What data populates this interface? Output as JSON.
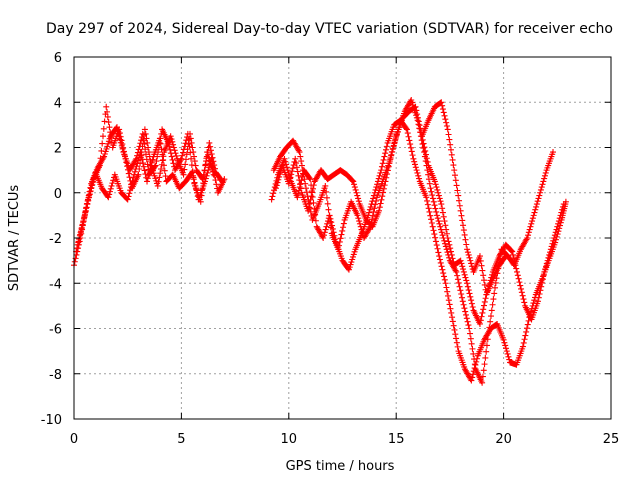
{
  "chart_data": {
    "type": "scatter",
    "title": "Day 297 of 2024, Sidereal Day-to-day VTEC variation (SDTVAR) for receiver echo",
    "xlabel": "GPS time / hours",
    "ylabel": "SDTVAR / TECUs",
    "xlim": [
      0,
      25
    ],
    "ylim": [
      -10,
      6
    ],
    "xticks": [
      "0",
      "5",
      "10",
      "15",
      "20",
      "25"
    ],
    "yticks": [
      "6",
      "4",
      "2",
      "0",
      "-2",
      "-4",
      "-6",
      "-8",
      "-10"
    ],
    "grid": true,
    "marker": "+",
    "color": "#ff0000",
    "series": [
      {
        "name": "trace-1",
        "x": [
          0.0,
          0.3,
          0.6,
          0.9,
          1.2,
          1.5,
          1.8,
          2.1,
          2.4,
          2.7,
          3.0,
          3.3,
          3.6,
          3.9,
          4.2,
          4.5,
          4.8,
          5.1,
          5.4,
          5.7,
          6.0,
          6.3,
          6.6,
          6.9
        ],
        "y": [
          -3.2,
          -2.0,
          -0.5,
          0.6,
          1.2,
          3.8,
          2.0,
          2.8,
          1.5,
          0.2,
          0.8,
          2.8,
          1.2,
          0.3,
          1.8,
          2.5,
          1.5,
          0.8,
          2.6,
          1.0,
          0.6,
          2.2,
          0.9,
          0.5
        ]
      },
      {
        "name": "trace-2",
        "x": [
          0.1,
          0.4,
          0.7,
          1.0,
          1.3,
          1.6,
          1.9,
          2.2,
          2.5,
          2.8,
          3.1,
          3.4,
          3.7,
          4.0,
          4.3,
          4.6,
          4.9,
          5.2,
          5.5,
          5.8,
          6.1,
          6.4,
          6.7,
          7.0
        ],
        "y": [
          -2.6,
          -1.4,
          -0.2,
          0.9,
          0.2,
          -0.2,
          0.8,
          0.0,
          -0.3,
          0.8,
          1.8,
          0.5,
          1.6,
          2.4,
          0.5,
          0.8,
          0.2,
          0.5,
          0.9,
          -0.3,
          0.5,
          1.5,
          0.0,
          0.6
        ]
      },
      {
        "name": "trace-3",
        "x": [
          0.2,
          0.5,
          0.8,
          1.1,
          1.4,
          1.7,
          2.0,
          2.3,
          2.6,
          2.9,
          3.2,
          3.5,
          3.8,
          4.1,
          4.4,
          4.7,
          5.0,
          5.3,
          5.6,
          5.9,
          6.2,
          6.5
        ],
        "y": [
          -2.2,
          -1.0,
          0.4,
          1.1,
          1.6,
          2.5,
          2.9,
          1.8,
          1.0,
          1.5,
          2.6,
          0.8,
          1.2,
          2.8,
          2.2,
          1.0,
          1.5,
          2.6,
          0.4,
          -0.4,
          1.8,
          0.8
        ]
      },
      {
        "name": "trace-4",
        "x": [
          9.2,
          9.5,
          9.8,
          10.1,
          10.4,
          10.7,
          11.0,
          11.3,
          11.6,
          11.9,
          12.2,
          12.5,
          12.8,
          13.1,
          13.4,
          13.7,
          14.0,
          14.3,
          14.6,
          14.9,
          15.2,
          15.5,
          15.8,
          16.1,
          16.4,
          16.7,
          17.0,
          17.3,
          17.6,
          17.9,
          18.2,
          18.5,
          18.8,
          19.1,
          19.4,
          19.7,
          20.0,
          20.3,
          20.6,
          20.9,
          21.2,
          21.5,
          21.8,
          22.1,
          22.4,
          22.7,
          22.9
        ],
        "y": [
          -0.3,
          0.8,
          1.5,
          0.5,
          -0.2,
          1.0,
          0.6,
          -1.5,
          -2.0,
          -1.0,
          -2.2,
          -3.0,
          -3.4,
          -2.5,
          -1.8,
          -1.0,
          0.0,
          1.0,
          2.2,
          3.0,
          3.2,
          2.8,
          1.5,
          0.5,
          -0.2,
          -1.5,
          -2.8,
          -4.0,
          -5.5,
          -7.0,
          -7.8,
          -8.3,
          -7.2,
          -6.5,
          -6.0,
          -5.8,
          -6.5,
          -7.5,
          -7.6,
          -6.8,
          -5.5,
          -4.5,
          -3.8,
          -3.0,
          -2.2,
          -1.2,
          -0.4
        ]
      },
      {
        "name": "trace-5",
        "x": [
          9.4,
          9.7,
          10.0,
          10.3,
          10.6,
          10.9,
          11.2,
          11.5,
          11.8,
          12.1,
          12.4,
          12.7,
          13.0,
          13.3,
          13.6,
          13.9,
          14.2,
          14.5,
          14.8,
          15.1,
          15.4,
          15.7,
          16.0,
          16.3,
          16.6,
          16.9,
          17.2,
          17.5,
          17.8,
          18.1,
          18.4,
          18.7,
          19.0,
          19.3,
          19.6,
          19.9,
          20.2,
          20.5,
          20.8,
          21.1,
          21.4,
          21.7,
          22.0,
          22.3
        ],
        "y": [
          0.2,
          1.2,
          0.4,
          1.5,
          0.0,
          -0.8,
          0.5,
          1.0,
          0.6,
          0.8,
          1.0,
          0.8,
          0.5,
          -0.5,
          -1.2,
          -1.5,
          -0.8,
          0.5,
          1.8,
          2.8,
          3.6,
          4.1,
          3.2,
          1.8,
          0.2,
          -1.0,
          -2.0,
          -3.0,
          -3.5,
          -4.8,
          -6.0,
          -7.8,
          -8.4,
          -6.2,
          -4.2,
          -2.5,
          -2.8,
          -3.2,
          -2.5,
          -2.0,
          -1.0,
          0.0,
          1.0,
          1.8
        ]
      },
      {
        "name": "trace-6",
        "x": [
          9.3,
          9.6,
          9.9,
          10.2,
          10.5,
          10.8,
          11.1,
          11.4,
          11.7,
          12.0,
          12.3,
          12.6,
          12.9,
          13.2,
          13.5,
          13.8,
          14.1,
          14.4,
          14.7,
          15.0,
          15.3,
          15.6,
          15.9,
          16.2,
          16.5,
          16.8,
          17.1,
          17.4,
          17.7,
          18.0,
          18.3,
          18.6,
          18.9,
          19.2,
          19.5,
          19.8,
          20.1,
          20.4,
          20.7,
          21.0,
          21.3,
          21.6,
          21.9,
          22.2,
          22.5,
          22.8
        ],
        "y": [
          1.0,
          1.6,
          2.0,
          2.3,
          1.8,
          0.2,
          -1.2,
          -0.5,
          0.3,
          -1.8,
          -2.5,
          -1.2,
          -0.4,
          -1.0,
          -2.0,
          -1.5,
          -0.2,
          0.6,
          1.4,
          2.5,
          3.3,
          3.6,
          3.8,
          2.5,
          1.2,
          0.5,
          -0.5,
          -2.0,
          -3.2,
          -3.0,
          -4.0,
          -5.2,
          -5.8,
          -4.5,
          -3.5,
          -2.8,
          -2.3,
          -2.6,
          -3.8,
          -5.0,
          -5.6,
          -4.8,
          -3.5,
          -2.5,
          -1.5,
          -0.5
        ]
      },
      {
        "name": "trace-7",
        "x": [
          16.2,
          16.5,
          16.8,
          17.1,
          17.4,
          17.7,
          18.0,
          18.3,
          18.6,
          18.9,
          19.2,
          19.5,
          19.8,
          20.1
        ],
        "y": [
          2.5,
          3.2,
          3.8,
          4.0,
          2.8,
          1.0,
          -0.8,
          -2.5,
          -3.5,
          -2.8,
          -4.5,
          -3.8,
          -3.2,
          -2.8
        ]
      }
    ]
  }
}
